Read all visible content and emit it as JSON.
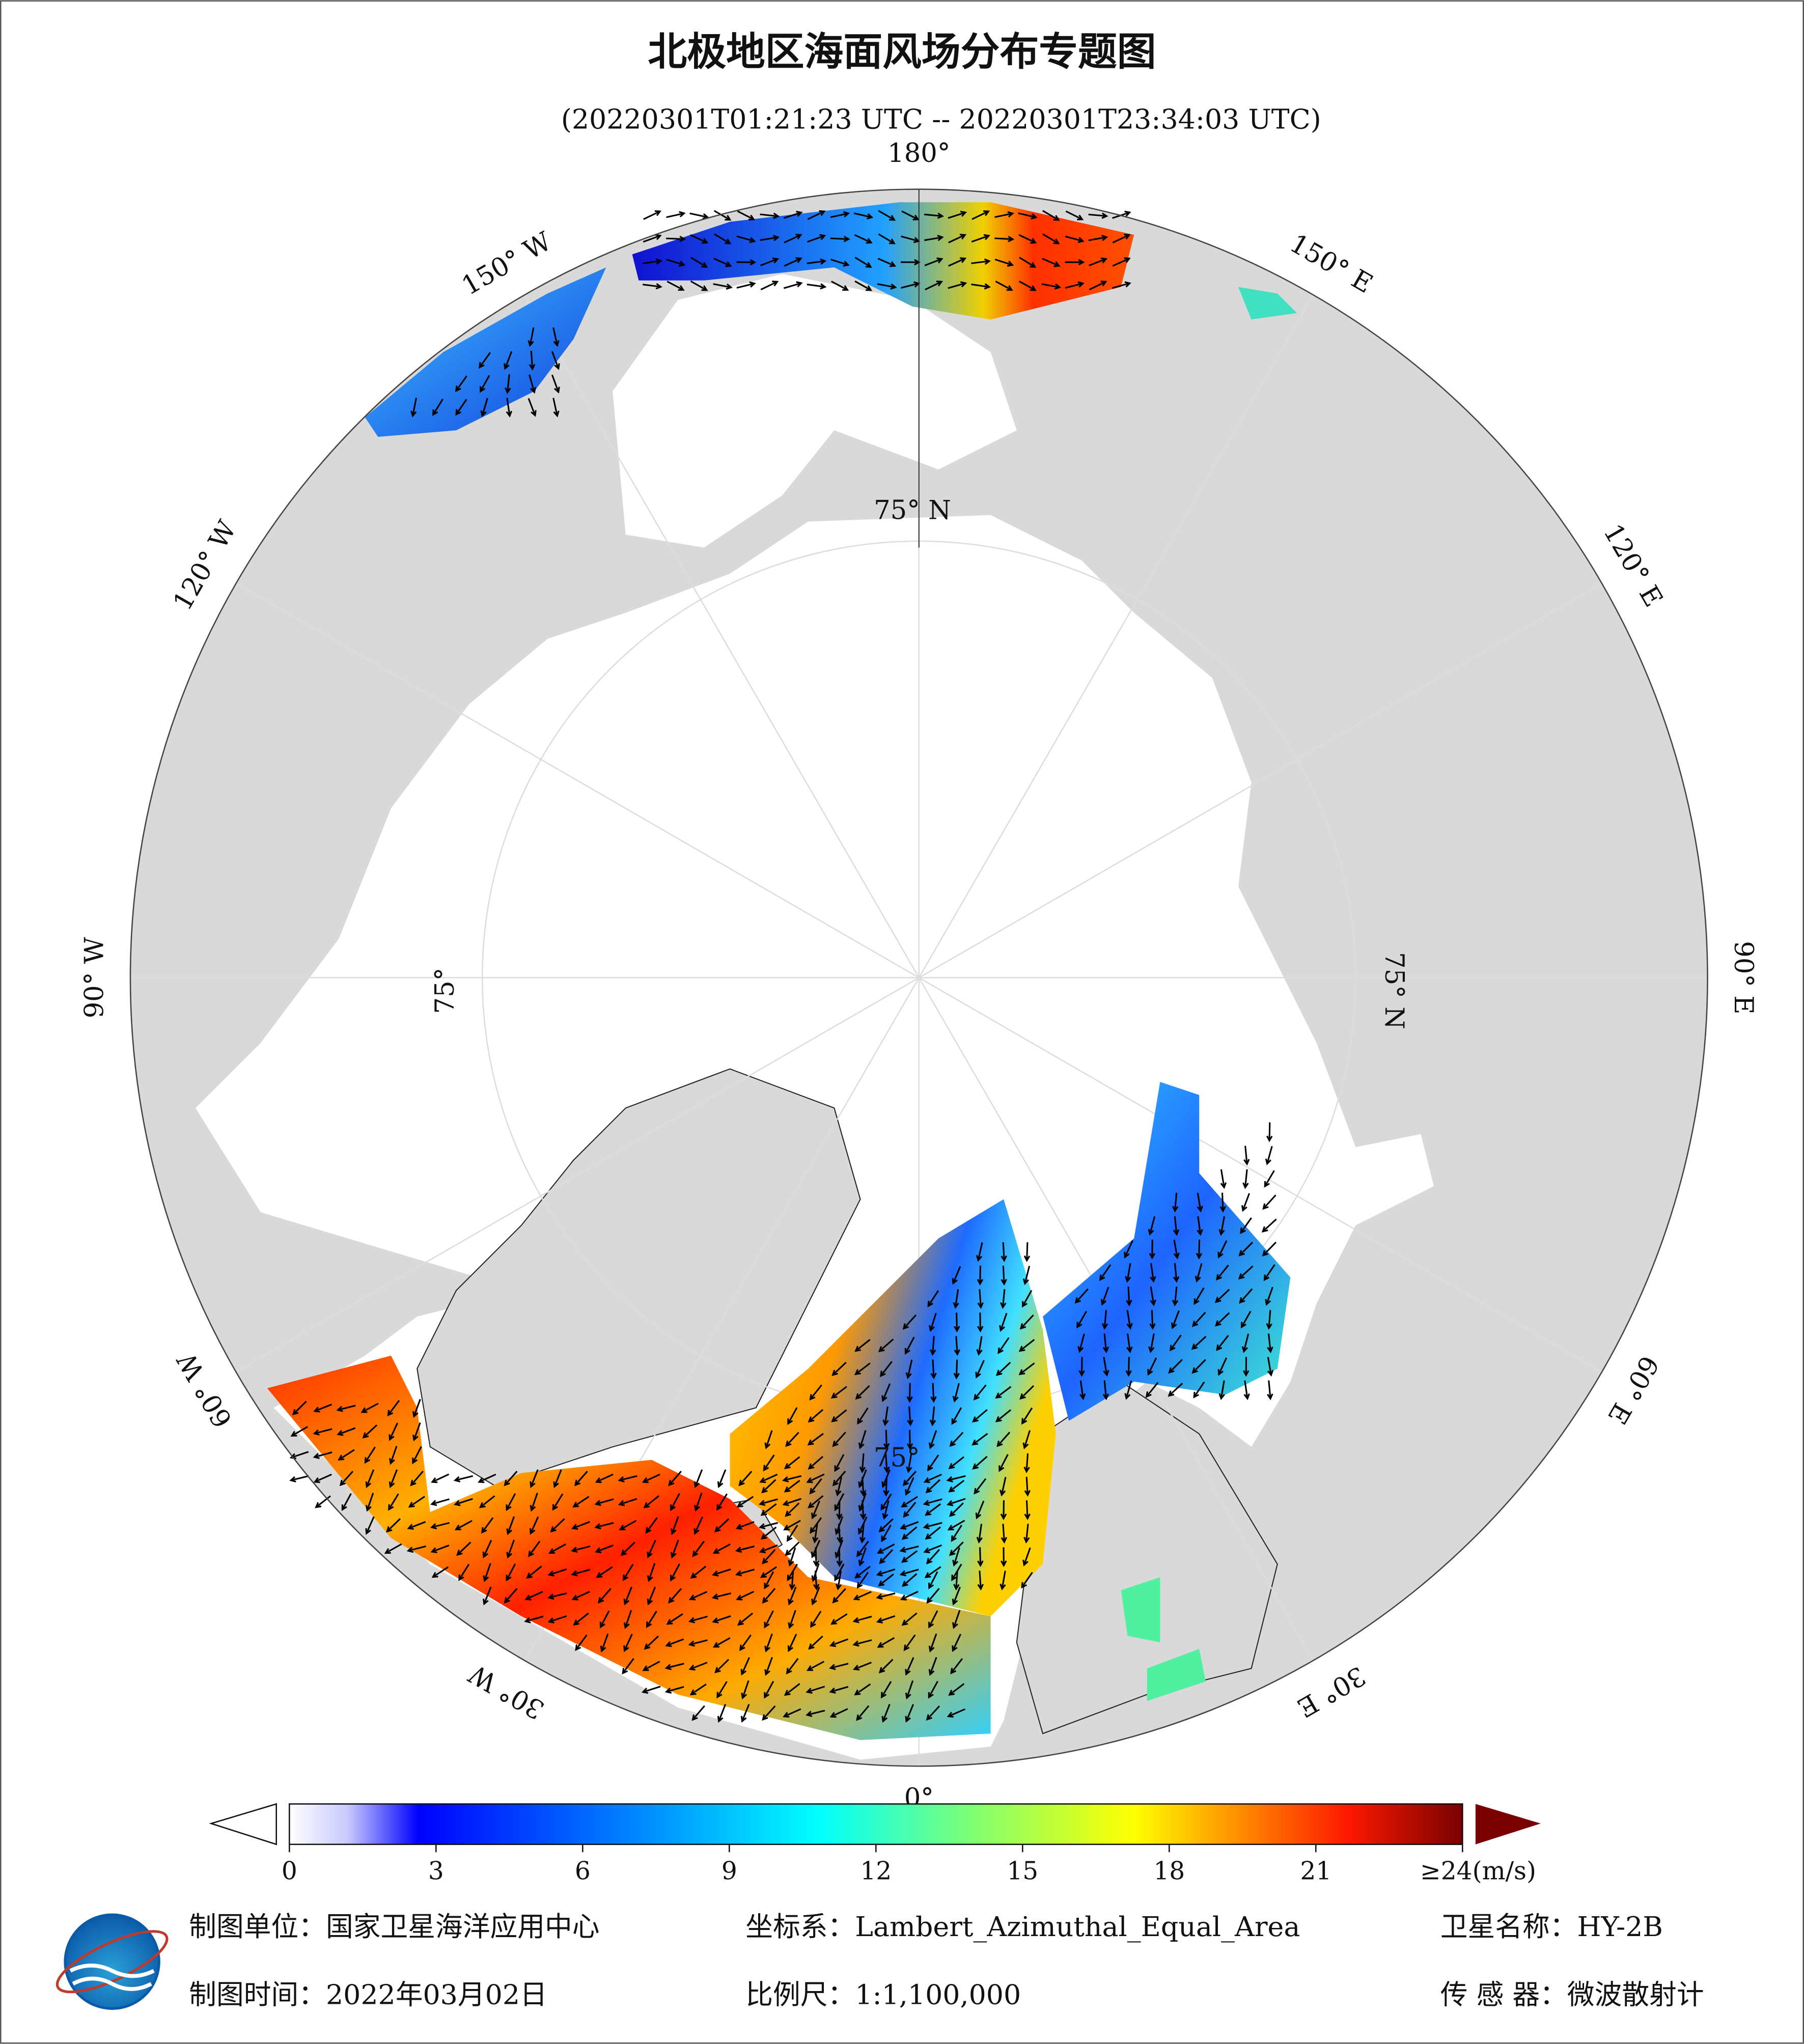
{
  "title": "北极地区海面风场分布专题图",
  "subtitle": "(20220301T01:21:23 UTC -- 20220301T23:34:03 UTC)",
  "map": {
    "longitude_labels": [
      "180°",
      "150° E",
      "120° E",
      "90° E",
      "60° E",
      "30° E",
      "0°",
      "30° W",
      "60° W",
      "90° W",
      "120° W",
      "150° W"
    ],
    "latitude_labels": [
      "75° N",
      "75° N",
      "75°",
      "75°"
    ]
  },
  "colorbar": {
    "range": [
      0,
      24
    ],
    "ticks": [
      0,
      3,
      6,
      9,
      12,
      15,
      18,
      21,
      {
        "value": 24,
        "label": "≥24(m/s)"
      }
    ]
  },
  "footer": {
    "unit": "制图单位：国家卫星海洋应用中心",
    "projection": "坐标系：Lambert_Azimuthal_Equal_Area",
    "satellite": "卫星名称：HY-2B",
    "date": "制图时间：2022年03月02日",
    "scale": "比例尺：1:1,100,000",
    "sensor": "传 感 器：微波散射计"
  }
}
